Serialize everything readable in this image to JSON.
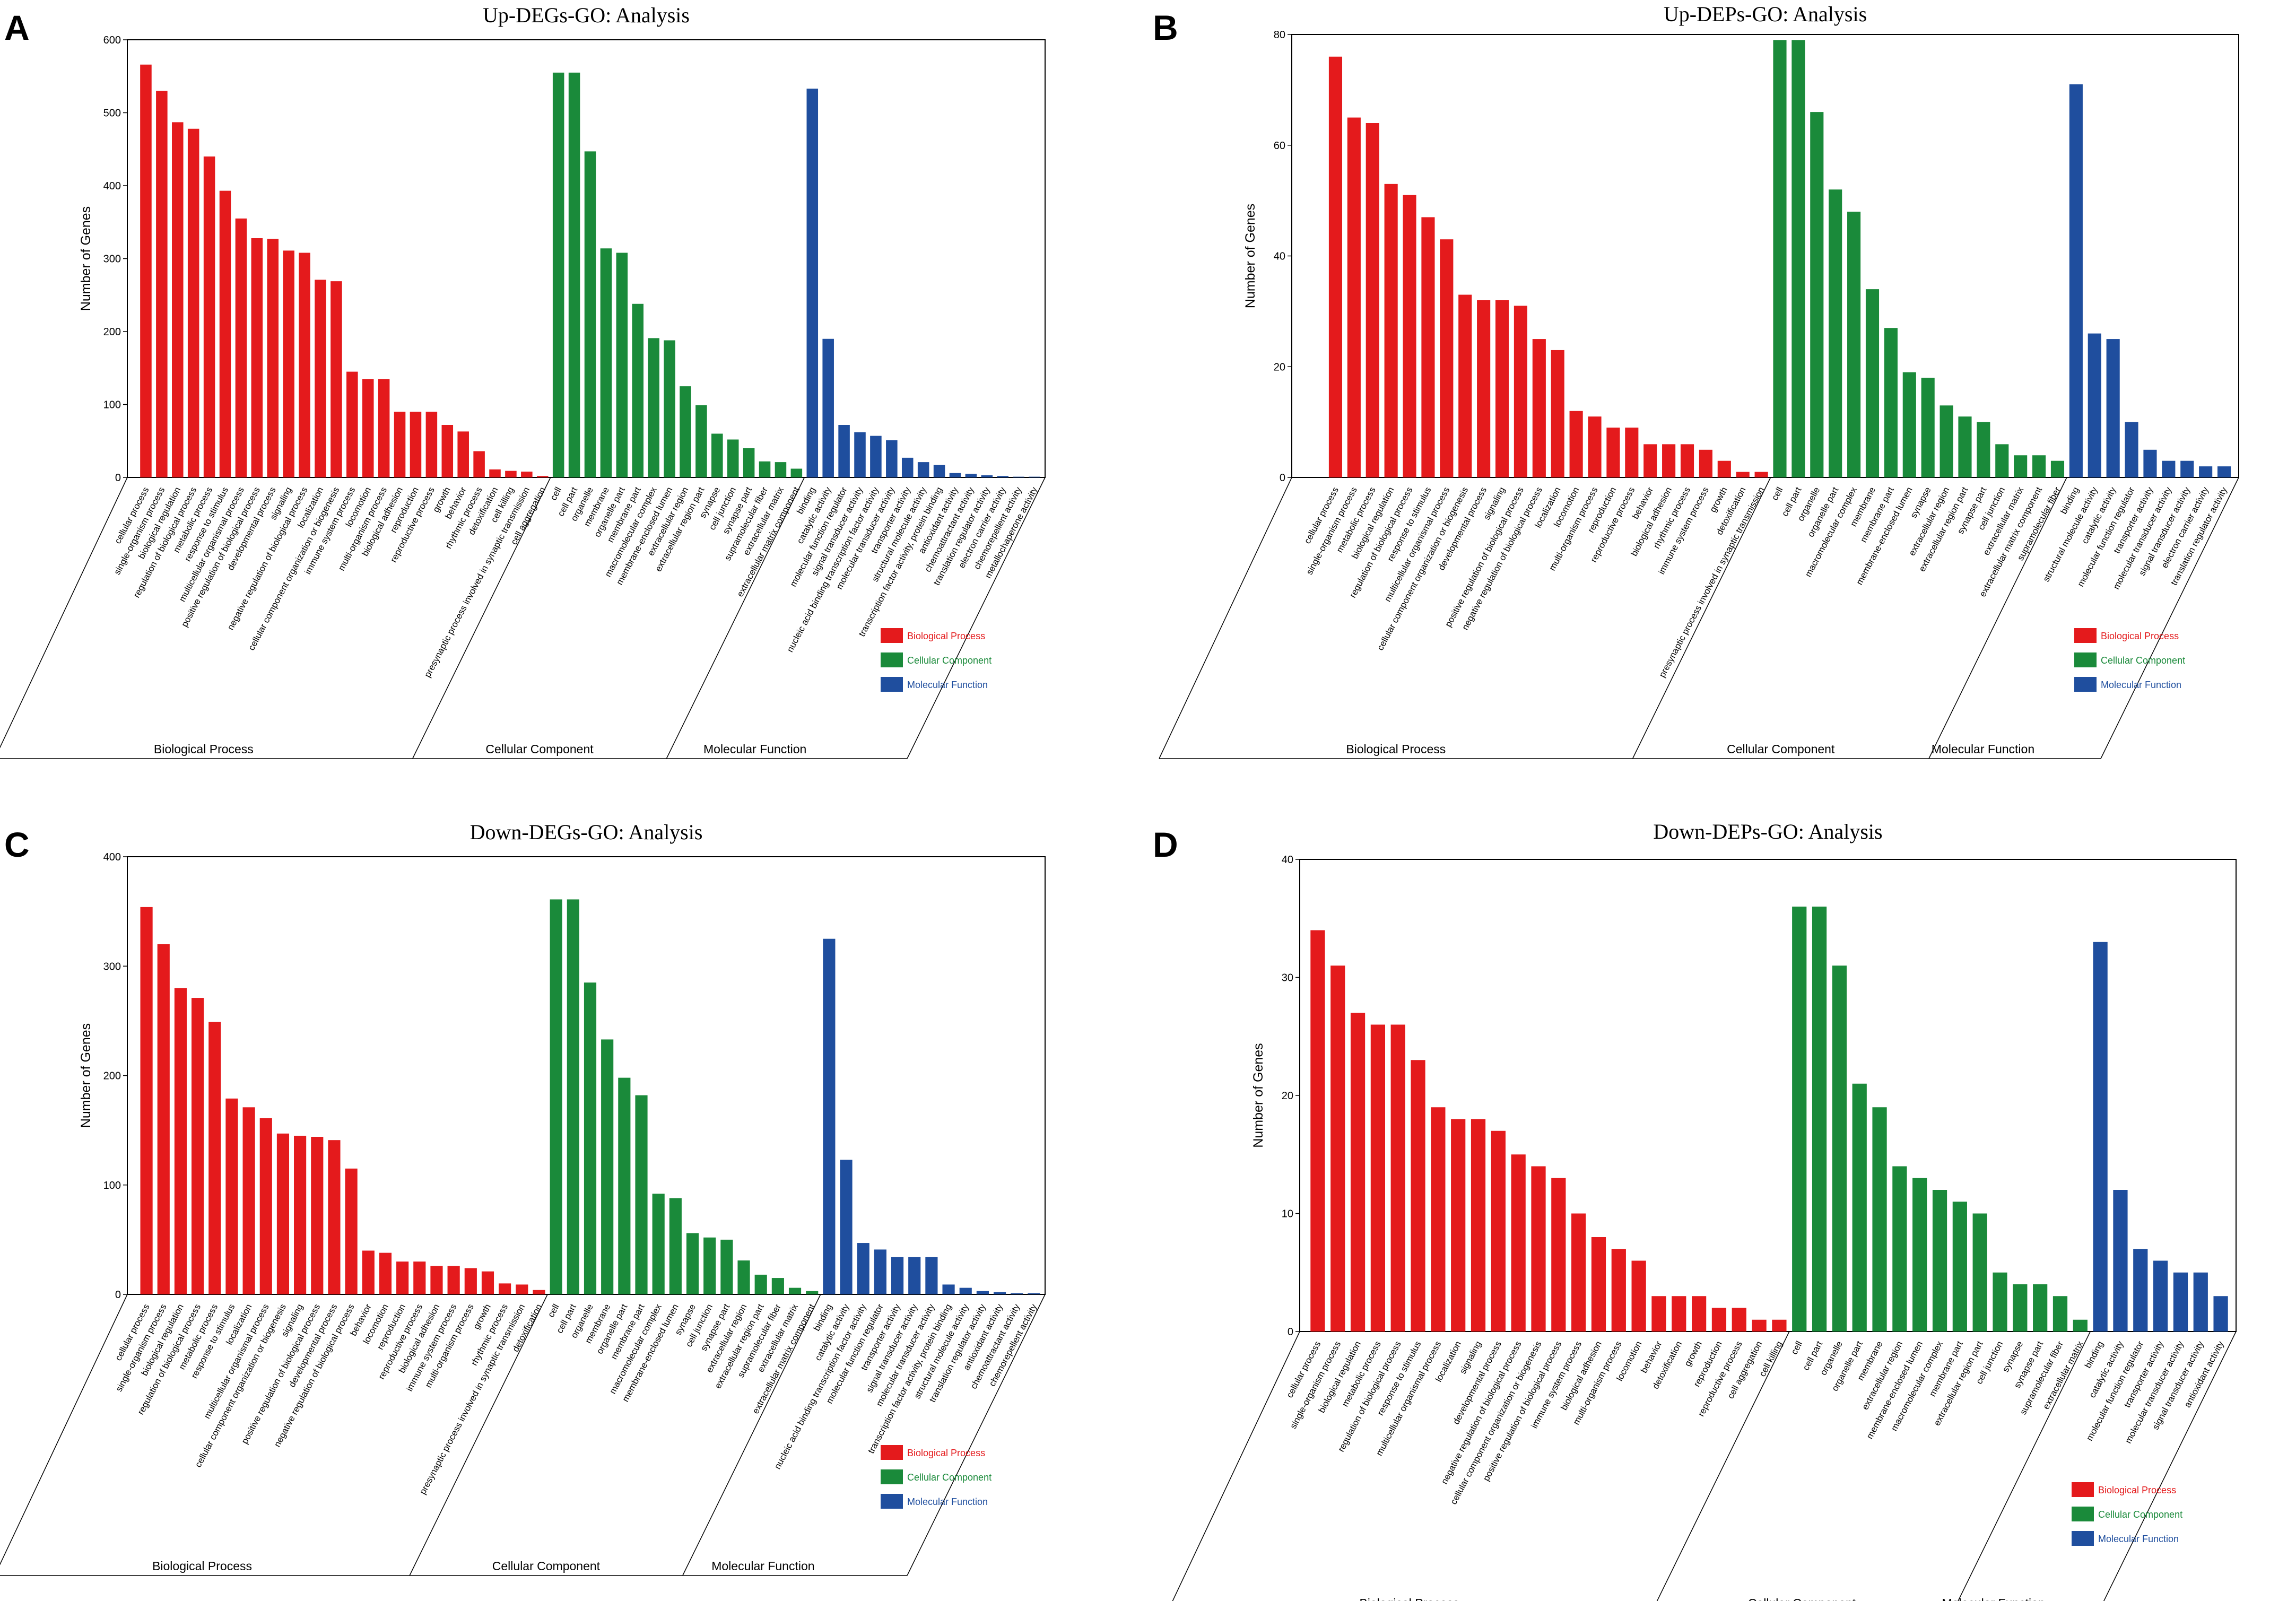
{
  "colors": {
    "bp": "#e41a1c",
    "cc": "#1a8a3a",
    "mf": "#1f4e9e"
  },
  "legend": [
    "Biological Process",
    "Cellular Component",
    "Molecular Function"
  ],
  "chart_data": [
    {
      "panel": "A",
      "type": "bar",
      "title": "Up-DEGs-GO: Analysis",
      "ylabel": "Number of Genes",
      "ylim": [
        0,
        600
      ],
      "yticks": [
        0,
        100,
        200,
        300,
        400,
        500,
        600
      ],
      "groups": [
        {
          "name": "Biological Process",
          "categories": [
            "cellular process",
            "single-organism process",
            "biological regulation",
            "regulation of biological process",
            "metabolic process",
            "response to stimulus",
            "multicellular organismal process",
            "positive regulation of biological process",
            "developmental process",
            "signaling",
            "negative regulation of biological process",
            "localization",
            "cellular component organization or biogenesis",
            "immune system process",
            "locomotion",
            "multi-organism process",
            "biological adhesion",
            "reproduction",
            "reproductive process",
            "growth",
            "behavior",
            "rhythmic process",
            "detoxification",
            "cell killing",
            "presynaptic process involved in synaptic transmission",
            "cell aggregation"
          ],
          "values": [
            566,
            530,
            487,
            478,
            440,
            393,
            355,
            328,
            327,
            311,
            308,
            271,
            269,
            145,
            135,
            135,
            90,
            90,
            90,
            72,
            63,
            36,
            11,
            9,
            8,
            2
          ]
        },
        {
          "name": "Cellular Component",
          "categories": [
            "cell",
            "cell part",
            "organelle",
            "membrane",
            "organelle part",
            "membrane part",
            "macromolecular complex",
            "membrane-enclosed lumen",
            "extracellular region",
            "extracellular region part",
            "synapse",
            "cell junction",
            "synapse part",
            "supramolecular fiber",
            "extracellular matrix",
            "extracellular matrix component"
          ],
          "values": [
            555,
            555,
            447,
            314,
            308,
            238,
            191,
            188,
            125,
            99,
            60,
            52,
            40,
            22,
            21,
            12
          ]
        },
        {
          "name": "Molecular Function",
          "categories": [
            "binding",
            "catalytic activity",
            "molecular function regulator",
            "signal transducer activity",
            "nucleic acid binding transcription factor activity",
            "molecular transducer activity",
            "transporter activity",
            "structural molecule activity",
            "transcription factor activity, protein binding",
            "antioxidant activity",
            "chemoattractant activity",
            "translation regulator activity",
            "electron carrier activity",
            "chemorepellent activity",
            "metallochaperone activity"
          ],
          "values": [
            533,
            190,
            72,
            62,
            57,
            51,
            27,
            21,
            17,
            6,
            5,
            3,
            2,
            1,
            1
          ]
        }
      ]
    },
    {
      "panel": "B",
      "type": "bar",
      "title": "Up-DEPs-GO: Analysis",
      "ylabel": "Number of Genes",
      "ylim": [
        0,
        80
      ],
      "yticks": [
        0,
        20,
        40,
        60,
        80
      ],
      "groups": [
        {
          "name": "Biological Process",
          "categories": [
            "cellular process",
            "single-organism process",
            "metabolic process",
            "biological regulation",
            "regulation of biological process",
            "response to stimulus",
            "multicellular organismal process",
            "cellular component organization or biogenesis",
            "developmental process",
            "signaling",
            "positive regulation of biological process",
            "negative regulation of biological process",
            "localization",
            "locomotion",
            "multi-organism process",
            "reproduction",
            "reproductive process",
            "behavior",
            "biological adhesion",
            "rhythmic process",
            "immune system process",
            "growth",
            "detoxification",
            "presynaptic process involved in synaptic transmission"
          ],
          "values": [
            76,
            65,
            64,
            53,
            51,
            47,
            43,
            33,
            32,
            32,
            31,
            25,
            23,
            12,
            11,
            9,
            9,
            6,
            6,
            6,
            5,
            3,
            1,
            1
          ]
        },
        {
          "name": "Cellular Component",
          "categories": [
            "cell",
            "cell part",
            "organelle",
            "organelle part",
            "macromolecular complex",
            "membrane",
            "membrane part",
            "membrane-enclosed lumen",
            "synapse",
            "extracellular region",
            "extracellular region part",
            "synapse part",
            "cell junction",
            "extracellular matrix",
            "extracellular matrix component",
            "supramolecular fiber"
          ],
          "values": [
            79,
            79,
            66,
            52,
            48,
            34,
            27,
            19,
            18,
            13,
            11,
            10,
            6,
            4,
            4,
            3
          ]
        },
        {
          "name": "Molecular Function",
          "categories": [
            "binding",
            "structural molecule activity",
            "catalytic activity",
            "molecular function regulator",
            "transporter activity",
            "molecular transducer activity",
            "signal transducer activity",
            "electron carrier activity",
            "translation regulator activity"
          ],
          "values": [
            71,
            26,
            25,
            10,
            5,
            3,
            3,
            2,
            2
          ]
        }
      ]
    },
    {
      "panel": "C",
      "type": "bar",
      "title": "Down-DEGs-GO: Analysis",
      "ylabel": "Number of Genes",
      "ylim": [
        0,
        400
      ],
      "yticks": [
        0,
        100,
        200,
        300,
        400
      ],
      "groups": [
        {
          "name": "Biological Process",
          "categories": [
            "cellular process",
            "single-organism process",
            "biological regulation",
            "regulation of biological process",
            "metabolic process",
            "response to stimulus",
            "localization",
            "multicellular organismal process",
            "cellular component organization or biogenesis",
            "signaling",
            "positive regulation of biological process",
            "developmental process",
            "negative regulation of biological process",
            "behavior",
            "locomotion",
            "reproduction",
            "reproductive process",
            "biological adhesion",
            "immune system process",
            "multi-organism process",
            "growth",
            "rhythmic process",
            "presynaptic process involved in synaptic transmission",
            "detoxification"
          ],
          "values": [
            354,
            320,
            280,
            271,
            249,
            179,
            171,
            161,
            147,
            145,
            144,
            141,
            115,
            40,
            38,
            30,
            30,
            26,
            26,
            24,
            21,
            10,
            9,
            4
          ]
        },
        {
          "name": "Cellular Component",
          "categories": [
            "cell",
            "cell part",
            "organelle",
            "membrane",
            "organelle part",
            "membrane part",
            "macromolecular complex",
            "membrane-enclosed lumen",
            "synapse",
            "cell junction",
            "synapse part",
            "extracellular region",
            "extracellular region part",
            "supramolecular fiber",
            "extracellular matrix",
            "extracellular matrix component"
          ],
          "values": [
            361,
            361,
            285,
            233,
            198,
            182,
            92,
            88,
            56,
            52,
            50,
            31,
            18,
            15,
            6,
            3
          ]
        },
        {
          "name": "Molecular Function",
          "categories": [
            "binding",
            "catalytic activity",
            "nucleic acid binding transcription factor activity",
            "molecular function regulator",
            "transporter activity",
            "signal transducer activity",
            "molecular transducer activity",
            "transcription factor activity, protein binding",
            "structural molecule activity",
            "translation regulator activity",
            "antioxidant activity",
            "chemoattractant activity",
            "chemorepellent activity"
          ],
          "values": [
            325,
            123,
            47,
            41,
            34,
            34,
            34,
            9,
            6,
            3,
            2,
            1,
            1
          ]
        }
      ]
    },
    {
      "panel": "D",
      "type": "bar",
      "title": "Down-DEPs-GO: Analysis",
      "ylabel": "Number of Genes",
      "ylim": [
        0,
        40
      ],
      "yticks": [
        0,
        10,
        20,
        30,
        40
      ],
      "groups": [
        {
          "name": "Biological Process",
          "categories": [
            "cellular process",
            "single-organism process",
            "biological regulation",
            "metabolic process",
            "regulation of biological process",
            "response to stimulus",
            "multicellular organismal process",
            "localization",
            "signaling",
            "developmental process",
            "negative regulation of biological process",
            "cellular component organization or biogenesis",
            "positive regulation of biological process",
            "immune system process",
            "biological adhesion",
            "multi-organism process",
            "locomotion",
            "behavior",
            "detoxification",
            "growth",
            "reproduction",
            "reproductive process",
            "cell aggregation",
            "cell killing"
          ],
          "values": [
            34,
            31,
            27,
            26,
            26,
            23,
            19,
            18,
            18,
            17,
            15,
            14,
            13,
            10,
            8,
            7,
            6,
            3,
            3,
            3,
            2,
            2,
            1,
            1
          ]
        },
        {
          "name": "Cellular Component",
          "categories": [
            "cell",
            "cell part",
            "organelle",
            "organelle part",
            "membrane",
            "extracellular region",
            "membrane-enclosed lumen",
            "macromolecular complex",
            "membrane part",
            "extracellular region part",
            "cell junction",
            "synapse",
            "synapse part",
            "supramolecular fiber",
            "extracellular matrix"
          ],
          "values": [
            36,
            36,
            31,
            21,
            19,
            14,
            13,
            12,
            11,
            10,
            5,
            4,
            4,
            3,
            1
          ]
        },
        {
          "name": "Molecular Function",
          "categories": [
            "binding",
            "catalytic activity",
            "molecular function regulator",
            "transporter activity",
            "molecular transducer activity",
            "signal transducer activity",
            "antioxidant activity"
          ],
          "values": [
            33,
            12,
            7,
            6,
            5,
            5,
            3
          ]
        }
      ]
    }
  ]
}
